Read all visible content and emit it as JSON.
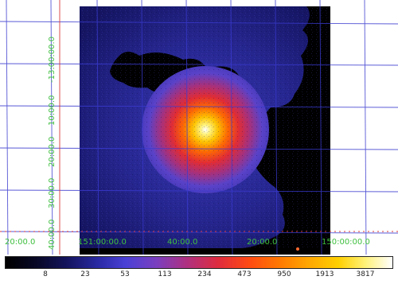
{
  "image": {
    "ra_labels": [
      "20:00.0",
      "151:00:00.0",
      "40:00.0",
      "20:00.0",
      "150:00:00.0"
    ],
    "dec_labels": [
      "-13:00:00.0",
      "10:00.0",
      "20:00.0",
      "30:00.0",
      "40:00.0"
    ],
    "colors": {
      "grid": "#3a3ad0",
      "ruler": "#d83a3a",
      "label": "#3fbf3f"
    }
  },
  "colorbar": {
    "ticks": [
      "8",
      "23",
      "53",
      "113",
      "234",
      "473",
      "950",
      "1913",
      "3817"
    ]
  }
}
